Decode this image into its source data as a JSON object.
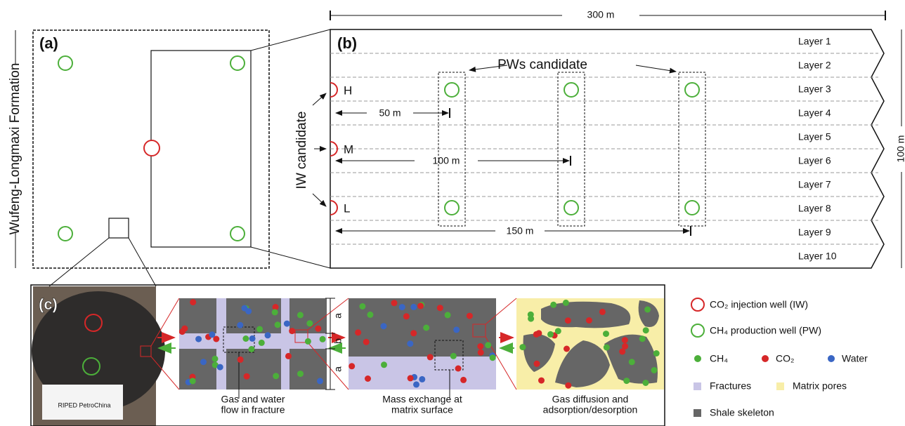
{
  "panel_a": {
    "label": "(a)",
    "formation": "Wufeng-Longmaxi Formation"
  },
  "panel_b": {
    "label": "(b)",
    "width": "300 m",
    "height": "100 m",
    "layers": [
      "Layer 1",
      "Layer 2",
      "Layer 3",
      "Layer 4",
      "Layer 5",
      "Layer 6",
      "Layer 7",
      "Layer 8",
      "Layer 9",
      "Layer 10"
    ],
    "pw_label": "PWs candidate",
    "iw_label": "IW candidate",
    "iw_positions": [
      "H",
      "M",
      "L"
    ],
    "distances": [
      "50 m",
      "100 m",
      "150 m"
    ]
  },
  "panel_c": {
    "label": "(c)",
    "photo_text": "RIPED PetroChina",
    "dims": [
      "a",
      "b",
      "a"
    ],
    "captions": [
      [
        "Gas and water",
        "flow in fracture"
      ],
      [
        "Mass exchange at",
        "matrix surface"
      ],
      [
        "Gas diffusion and",
        "adsorption/desorption"
      ]
    ]
  },
  "legend": {
    "iw": "CO₂ injection well (IW)",
    "pw": "CH₄ production well (PW)",
    "ch4": "CH₄",
    "co2": "CO₂",
    "water": "Water",
    "fractures": "Fractures",
    "matrix_pores": "Matrix pores",
    "skeleton": "Shale skeleton"
  }
}
